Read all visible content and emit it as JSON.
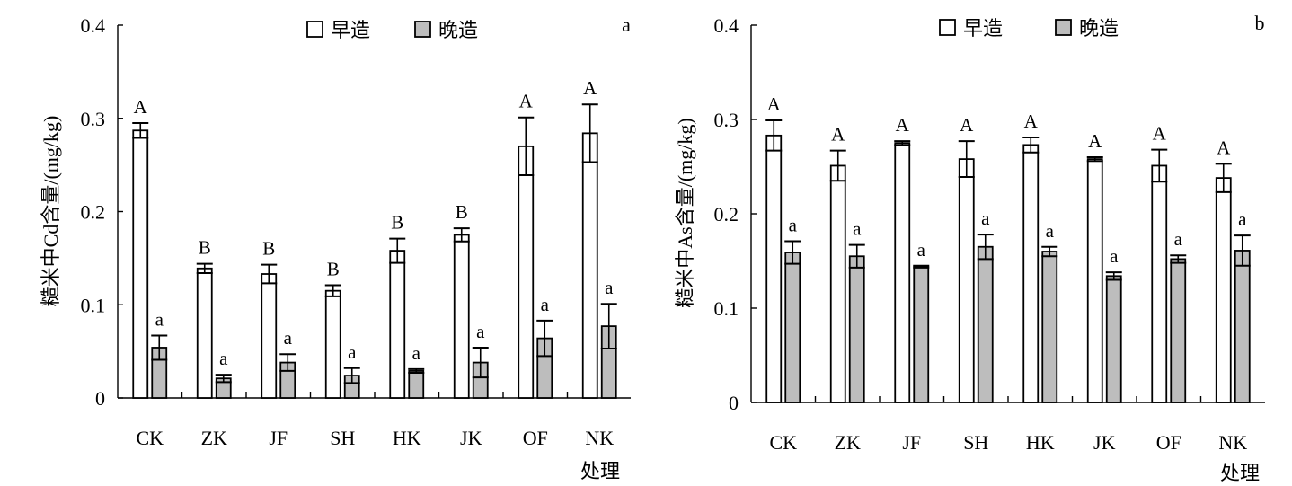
{
  "figure": {
    "panels": [
      "a",
      "b"
    ],
    "legend": [
      "早造",
      "晚造"
    ]
  },
  "chart_data": [
    {
      "type": "bar",
      "panel_tag": "a",
      "title": "",
      "ylabel": "糙米中Cd含量/(mg/kg)",
      "xlabel": "处理",
      "ylim": [
        0,
        0.4
      ],
      "yticks": [
        "0",
        "0.1",
        "0.2",
        "0.3",
        "0.4"
      ],
      "categories": [
        "CK",
        "ZK",
        "JF",
        "SH",
        "HK",
        "JK",
        "OF",
        "NK"
      ],
      "series": [
        {
          "name": "早造",
          "color": "#ffffff",
          "values": [
            0.287,
            0.139,
            0.133,
            0.115,
            0.158,
            0.175,
            0.27,
            0.284
          ],
          "errors": [
            0.008,
            0.005,
            0.01,
            0.006,
            0.013,
            0.007,
            0.031,
            0.031
          ],
          "sig": [
            "A",
            "B",
            "B",
            "B",
            "B",
            "B",
            "A",
            "A"
          ]
        },
        {
          "name": "晚造",
          "color": "#bdbdbd",
          "values": [
            0.054,
            0.021,
            0.038,
            0.024,
            0.029,
            0.038,
            0.064,
            0.077
          ],
          "errors": [
            0.013,
            0.004,
            0.009,
            0.008,
            0.002,
            0.016,
            0.019,
            0.024
          ],
          "sig": [
            "a",
            "a",
            "a",
            "a",
            "a",
            "a",
            "a",
            "a"
          ]
        }
      ]
    },
    {
      "type": "bar",
      "panel_tag": "b",
      "title": "",
      "ylabel": "糙米中As含量/(mg/kg)",
      "xlabel": "处理",
      "ylim": [
        0,
        0.4
      ],
      "yticks": [
        "0",
        "0.1",
        "0.2",
        "0.3",
        "0.4"
      ],
      "categories": [
        "CK",
        "ZK",
        "JF",
        "SH",
        "HK",
        "JK",
        "OF",
        "NK"
      ],
      "series": [
        {
          "name": "早造",
          "color": "#ffffff",
          "values": [
            0.283,
            0.251,
            0.275,
            0.258,
            0.273,
            0.258,
            0.251,
            0.238
          ],
          "errors": [
            0.016,
            0.016,
            0.002,
            0.019,
            0.008,
            0.002,
            0.017,
            0.015
          ],
          "sig": [
            "A",
            "A",
            "A",
            "A",
            "A",
            "A",
            "A",
            "A"
          ]
        },
        {
          "name": "晚造",
          "color": "#bdbdbd",
          "values": [
            0.159,
            0.155,
            0.144,
            0.165,
            0.16,
            0.134,
            0.152,
            0.161
          ],
          "errors": [
            0.012,
            0.012,
            0.001,
            0.013,
            0.005,
            0.004,
            0.004,
            0.016
          ],
          "sig": [
            "a",
            "a",
            "a",
            "a",
            "a",
            "a",
            "a",
            "a"
          ]
        }
      ]
    }
  ]
}
